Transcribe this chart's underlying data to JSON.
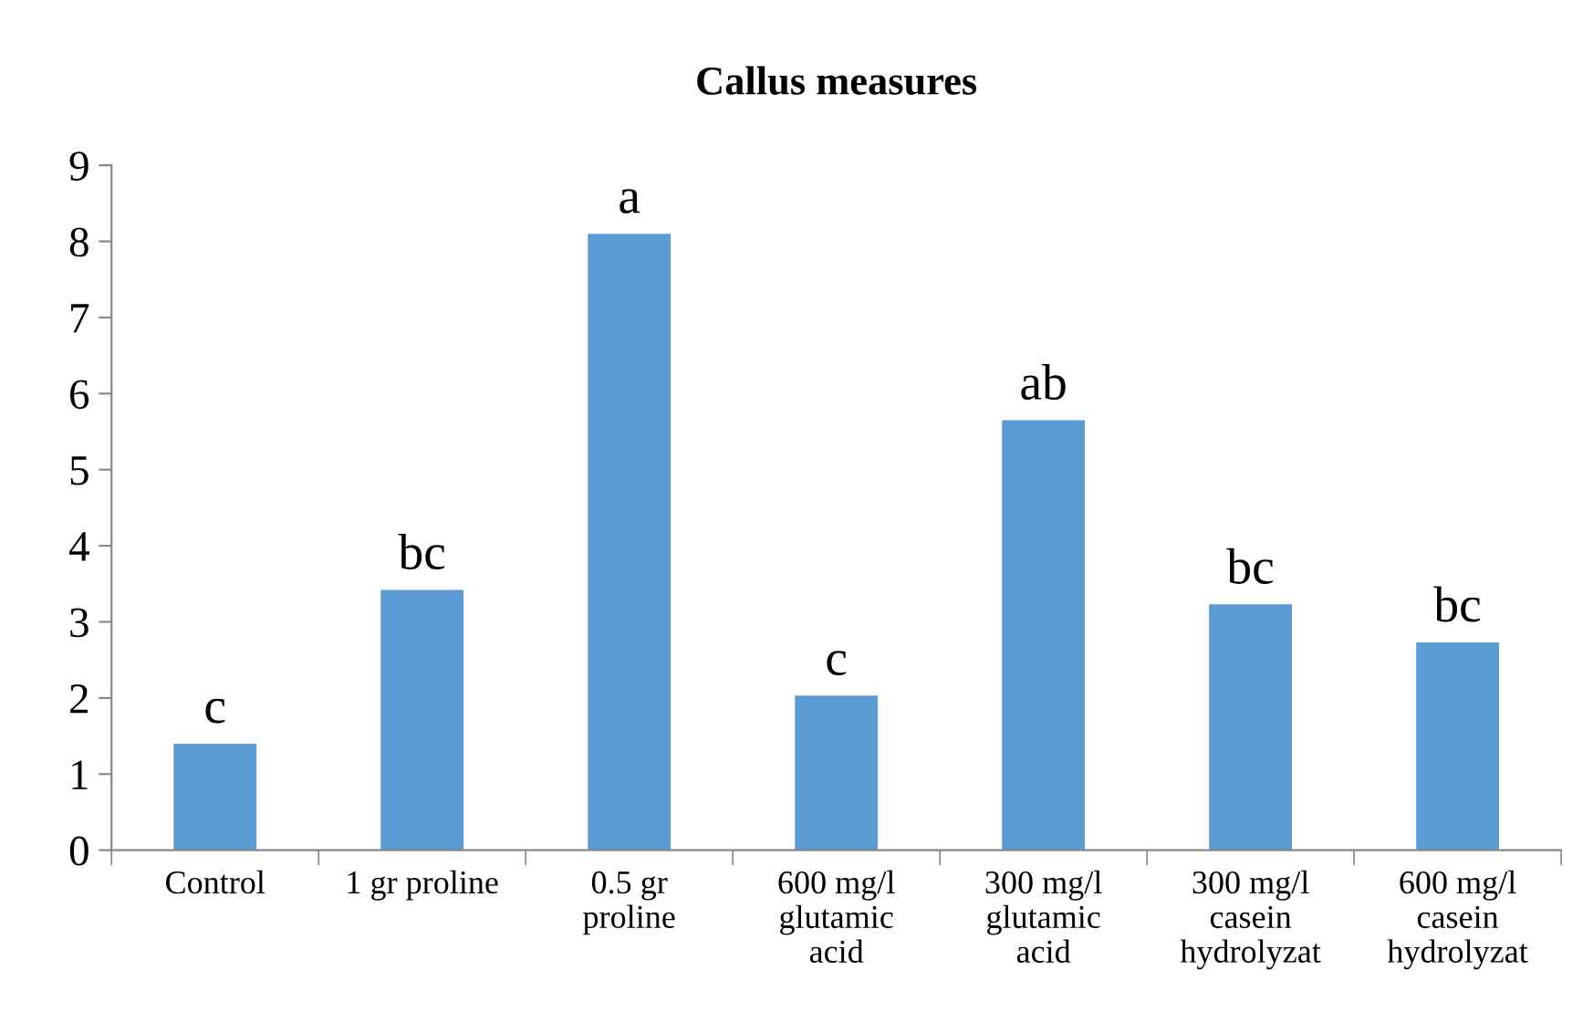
{
  "chart_data": {
    "type": "bar",
    "title": "Callus measures",
    "categories": [
      "Control",
      "1 gr proline",
      "0.5 gr\nproline",
      "600 mg/l\nglutamic\nacid",
      "300 mg/l\nglutamic\nacid",
      "300 mg/l\ncasein\nhydrolyzat",
      "600 mg/l\ncasein\nhydrolyzat"
    ],
    "values": [
      1.4,
      3.42,
      8.1,
      2.03,
      5.65,
      3.23,
      2.73
    ],
    "value_labels": [
      "c",
      "bc",
      "a",
      "c",
      "ab",
      "bc",
      "bc"
    ],
    "color": "#5b9bd5",
    "ylim": [
      0,
      9
    ],
    "yticks": [
      0,
      1,
      2,
      3,
      4,
      5,
      6,
      7,
      8,
      9
    ],
    "grid": false
  }
}
